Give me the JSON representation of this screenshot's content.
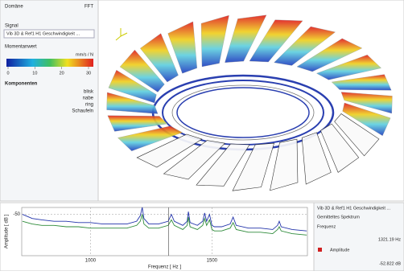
{
  "left_panel": {
    "domain_label": "Domäne",
    "domain_value": "FFT",
    "signal_label": "Signal",
    "signal_value": "Vib 3D & Ref1 H1 Geschwindigkeit ...",
    "momentanwert_label": "Momentanwert",
    "unit": "mm/s / N",
    "colorbar_ticks": [
      0,
      10,
      20,
      30
    ],
    "components_label": "Komponenten",
    "components": [
      "blisk",
      "nabe",
      "ring",
      "Schaufeln"
    ]
  },
  "right_panel": {
    "signal": "Vib 3D & Ref1 H1 Geschwindigkeit ...",
    "spectrum": "Gemitteltes Spektrum",
    "frequency_label": "Frequenz",
    "amplitude_label": "Amplitude",
    "amplitude_value": "-52.822 dB"
  },
  "chart_data": {
    "type": "line",
    "x_label": "Frequenz [ Hz ]",
    "y_label": "Amplitude [ dB ]",
    "x": [
      720,
      760,
      800,
      850,
      900,
      950,
      1000,
      1050,
      1100,
      1150,
      1190,
      1205,
      1213,
      1220,
      1240,
      1280,
      1320,
      1333,
      1345,
      1380,
      1398,
      1403,
      1410,
      1440,
      1462,
      1470,
      1478,
      1490,
      1500,
      1510,
      1540,
      1575,
      1587,
      1600,
      1650,
      1700,
      1750,
      1770,
      1777,
      1785,
      1830,
      1890
    ],
    "series": [
      {
        "color": "#2233aa",
        "values": [
          -50,
          -53,
          -54,
          -55,
          -55,
          -56,
          -56,
          -57,
          -57,
          -57,
          -55,
          -51,
          -45,
          -53,
          -57,
          -57,
          -55,
          -50,
          -55,
          -58,
          -55,
          -48,
          -56,
          -58,
          -55,
          -49,
          -55,
          -50,
          -58,
          -59,
          -59,
          -57,
          -52,
          -58,
          -60,
          -60,
          -61,
          -58,
          -55,
          -59,
          -61,
          -62
        ]
      },
      {
        "color": "#2e8b3a",
        "values": [
          -55,
          -57,
          -58,
          -58,
          -59,
          -59,
          -60,
          -60,
          -60,
          -60,
          -58,
          -55,
          -50,
          -57,
          -60,
          -60,
          -58,
          -54,
          -58,
          -61,
          -58,
          -52,
          -59,
          -61,
          -58,
          -53,
          -58,
          -54,
          -61,
          -62,
          -62,
          -60,
          -56,
          -61,
          -63,
          -63,
          -64,
          -61,
          -59,
          -62,
          -64,
          -65
        ]
      }
    ],
    "xlim": [
      717,
      1893
    ],
    "ylim": [
      -80,
      -45
    ],
    "xticks": [
      1000,
      1500
    ],
    "yticks": [
      -50
    ],
    "grid": true,
    "cursor": {
      "value": 1321.19,
      "label": "1321.19 Hz"
    }
  }
}
